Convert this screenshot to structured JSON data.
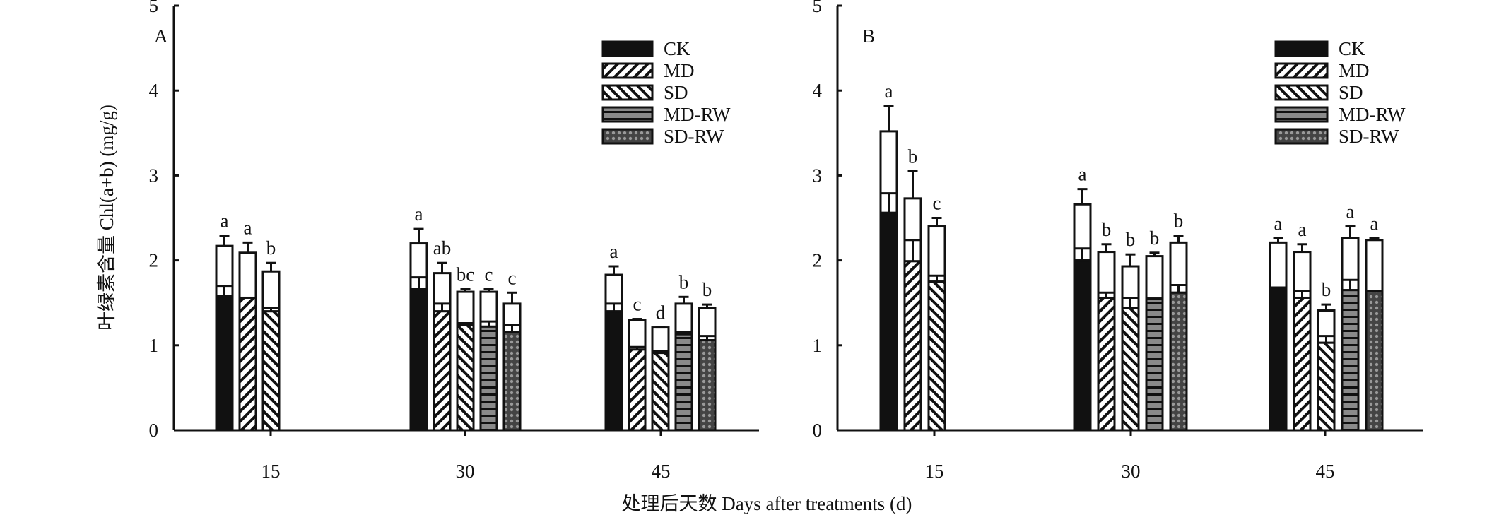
{
  "chart_data": {
    "type": "bar",
    "stacked": true,
    "ylabel": "叶绿素含量 Chl(a+b) (mg/g)",
    "xlabel": "处理后天数 Days after treatments (d)",
    "ylim": [
      0,
      5
    ],
    "yticks": [
      "0",
      "1",
      "2",
      "3",
      "4",
      "5"
    ],
    "categories": [
      "15",
      "30",
      "45"
    ],
    "legend": [
      "CK",
      "MD",
      "SD",
      "MD-RW",
      "SD-RW"
    ],
    "legend_placement": "top-right",
    "colors": {
      "CK": "#111111",
      "MD-RW": "#8a8a8a",
      "SD-RW": "#6a6a6a"
    },
    "panels": [
      {
        "label": "A",
        "groups": [
          {
            "day": "15",
            "bars": [
              {
                "series": "CK",
                "lower": 1.58,
                "lower_err": 0.12,
                "total": 2.17,
                "total_err": 0.12,
                "sig": "a"
              },
              {
                "series": "MD",
                "lower": 1.56,
                "lower_err": 0.0,
                "total": 2.09,
                "total_err": 0.12,
                "sig": "a"
              },
              {
                "series": "SD",
                "lower": 1.4,
                "lower_err": 0.04,
                "total": 1.87,
                "total_err": 0.1,
                "sig": "b"
              }
            ]
          },
          {
            "day": "30",
            "bars": [
              {
                "series": "CK",
                "lower": 1.66,
                "lower_err": 0.14,
                "total": 2.2,
                "total_err": 0.17,
                "sig": "a"
              },
              {
                "series": "MD",
                "lower": 1.4,
                "lower_err": 0.09,
                "total": 1.85,
                "total_err": 0.12,
                "sig": "ab"
              },
              {
                "series": "SD",
                "lower": 1.24,
                "lower_err": 0.02,
                "total": 1.63,
                "total_err": 0.03,
                "sig": "bc"
              },
              {
                "series": "MD-RW",
                "lower": 1.22,
                "lower_err": 0.06,
                "total": 1.63,
                "total_err": 0.03,
                "sig": "c"
              },
              {
                "series": "SD-RW",
                "lower": 1.16,
                "lower_err": 0.08,
                "total": 1.49,
                "total_err": 0.13,
                "sig": "c"
              }
            ]
          },
          {
            "day": "45",
            "bars": [
              {
                "series": "CK",
                "lower": 1.4,
                "lower_err": 0.09,
                "total": 1.83,
                "total_err": 0.1,
                "sig": "a"
              },
              {
                "series": "MD",
                "lower": 0.95,
                "lower_err": 0.03,
                "total": 1.3,
                "total_err": 0.01,
                "sig": "c"
              },
              {
                "series": "SD",
                "lower": 0.91,
                "lower_err": 0.02,
                "total": 1.21,
                "total_err": 0.0,
                "sig": "d"
              },
              {
                "series": "MD-RW",
                "lower": 1.13,
                "lower_err": 0.03,
                "total": 1.49,
                "total_err": 0.08,
                "sig": "b"
              },
              {
                "series": "SD-RW",
                "lower": 1.06,
                "lower_err": 0.05,
                "total": 1.44,
                "total_err": 0.04,
                "sig": "b"
              }
            ]
          }
        ]
      },
      {
        "label": "B",
        "groups": [
          {
            "day": "15",
            "bars": [
              {
                "series": "CK",
                "lower": 2.56,
                "lower_err": 0.23,
                "total": 3.52,
                "total_err": 0.3,
                "sig": "a"
              },
              {
                "series": "MD",
                "lower": 1.99,
                "lower_err": 0.25,
                "total": 2.73,
                "total_err": 0.32,
                "sig": "b"
              },
              {
                "series": "SD",
                "lower": 1.75,
                "lower_err": 0.07,
                "total": 2.4,
                "total_err": 0.1,
                "sig": "c"
              }
            ]
          },
          {
            "day": "30",
            "bars": [
              {
                "series": "CK",
                "lower": 2.0,
                "lower_err": 0.14,
                "total": 2.66,
                "total_err": 0.18,
                "sig": "a"
              },
              {
                "series": "MD",
                "lower": 1.56,
                "lower_err": 0.06,
                "total": 2.1,
                "total_err": 0.09,
                "sig": "b"
              },
              {
                "series": "SD",
                "lower": 1.44,
                "lower_err": 0.12,
                "total": 1.93,
                "total_err": 0.14,
                "sig": "b"
              },
              {
                "series": "MD-RW",
                "lower": 1.55,
                "lower_err": 0.0,
                "total": 2.05,
                "total_err": 0.04,
                "sig": "b"
              },
              {
                "series": "SD-RW",
                "lower": 1.62,
                "lower_err": 0.09,
                "total": 2.21,
                "total_err": 0.08,
                "sig": "b"
              }
            ]
          },
          {
            "day": "45",
            "bars": [
              {
                "series": "CK",
                "lower": 1.68,
                "lower_err": 0.0,
                "total": 2.21,
                "total_err": 0.05,
                "sig": "a"
              },
              {
                "series": "MD",
                "lower": 1.56,
                "lower_err": 0.08,
                "total": 2.1,
                "total_err": 0.09,
                "sig": "a"
              },
              {
                "series": "SD",
                "lower": 1.03,
                "lower_err": 0.08,
                "total": 1.41,
                "total_err": 0.07,
                "sig": "b"
              },
              {
                "series": "MD-RW",
                "lower": 1.65,
                "lower_err": 0.12,
                "total": 2.26,
                "total_err": 0.14,
                "sig": "a"
              },
              {
                "series": "SD-RW",
                "lower": 1.64,
                "lower_err": 0.0,
                "total": 2.24,
                "total_err": 0.02,
                "sig": "a"
              }
            ]
          }
        ]
      }
    ]
  }
}
